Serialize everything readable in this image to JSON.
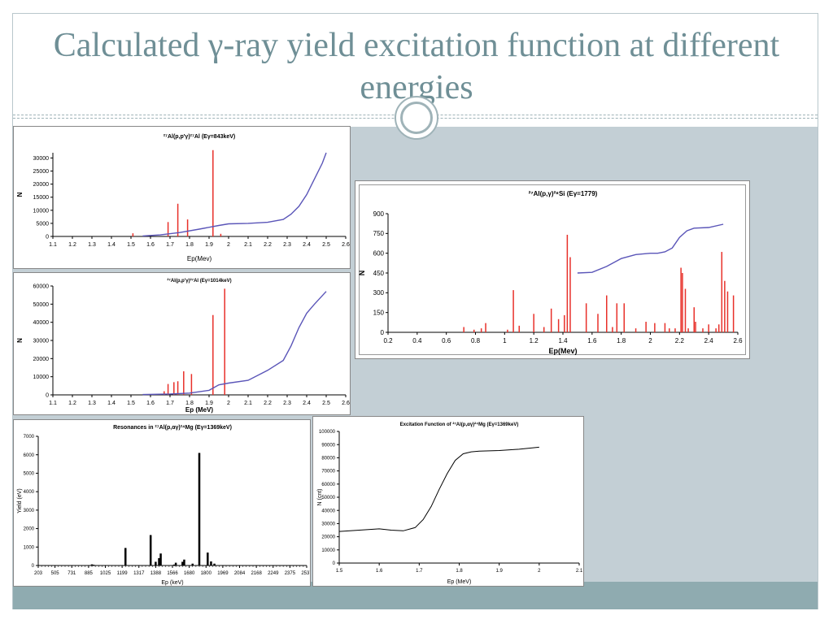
{
  "slide": {
    "title": "Calculated γ-ray yield excitation function at different energies",
    "colors": {
      "title": "#6f8f96",
      "panel_bg": "#c3cfd5",
      "band": "#8fabb0",
      "red": "#e8302a",
      "blue": "#5a55b8",
      "black": "#000000"
    }
  },
  "chart_data": [
    {
      "id": "c1",
      "type": "bar+line",
      "title": "²⁷Al(p,p'γ)²⁷Al (Eγ=843keV)",
      "xlabel": "Ep(Mev)",
      "ylabel": "N",
      "xlim": [
        1.1,
        2.6
      ],
      "ylim": [
        0,
        32000
      ],
      "xticks": [
        "1.1",
        "1.2",
        "1.3",
        "1.4",
        "1.5",
        "1.6",
        "1.7",
        "1.8",
        "1.9",
        "2",
        "2.1",
        "2.2",
        "2.3",
        "2.4",
        "2.5",
        "2.6"
      ],
      "yticks": [
        "0",
        "5000",
        "10000",
        "15000",
        "20000",
        "25000",
        "30000"
      ],
      "xtick_values": [
        1.1,
        1.2,
        1.3,
        1.4,
        1.5,
        1.6,
        1.7,
        1.8,
        1.9,
        2.0,
        2.1,
        2.2,
        2.3,
        2.4,
        2.5,
        2.6
      ],
      "ytick_values": [
        0,
        5000,
        10000,
        15000,
        20000,
        25000,
        30000
      ],
      "bars": {
        "x": [
          1.51,
          1.69,
          1.74,
          1.79,
          1.92,
          1.96
        ],
        "y": [
          1200,
          5500,
          12500,
          6500,
          33000,
          1000
        ]
      },
      "line": {
        "x": [
          1.56,
          1.65,
          1.75,
          1.85,
          1.95,
          2.0,
          2.1,
          2.2,
          2.28,
          2.32,
          2.36,
          2.4,
          2.44,
          2.48,
          2.5
        ],
        "y": [
          200,
          600,
          1500,
          2800,
          4200,
          4800,
          5000,
          5400,
          6500,
          8500,
          11500,
          16000,
          22000,
          28000,
          32000
        ]
      }
    },
    {
      "id": "c2",
      "type": "bar+line",
      "title": "²⁷Al(p,p'γ)²⁷Al (Eγ=1014keV)",
      "xlabel": "Ep (MeV)",
      "ylabel": "N",
      "xlim": [
        1.1,
        2.6
      ],
      "ylim": [
        0,
        60000
      ],
      "xticks": [
        "1.1",
        "1.2",
        "1.3",
        "1.4",
        "1.5",
        "1.6",
        "1.7",
        "1.8",
        "1.9",
        "2",
        "2.1",
        "2.2",
        "2.3",
        "2.4",
        "2.5",
        "2.6"
      ],
      "yticks": [
        "0",
        "10000",
        "20000",
        "30000",
        "40000",
        "50000",
        "60000"
      ],
      "xtick_values": [
        1.1,
        1.2,
        1.3,
        1.4,
        1.5,
        1.6,
        1.7,
        1.8,
        1.9,
        2.0,
        2.1,
        2.2,
        2.3,
        2.4,
        2.5,
        2.6
      ],
      "ytick_values": [
        0,
        10000,
        20000,
        30000,
        40000,
        50000,
        60000
      ],
      "bars": {
        "x": [
          1.67,
          1.69,
          1.72,
          1.74,
          1.77,
          1.81,
          1.92,
          1.98
        ],
        "y": [
          2000,
          6000,
          7000,
          7500,
          13000,
          11500,
          44000,
          58500
        ]
      },
      "line": {
        "x": [
          1.56,
          1.7,
          1.8,
          1.9,
          1.95,
          2.0,
          2.1,
          2.2,
          2.28,
          2.32,
          2.36,
          2.4,
          2.44,
          2.5
        ],
        "y": [
          200,
          500,
          1000,
          2500,
          5500,
          6500,
          8000,
          13500,
          19000,
          27000,
          37000,
          45000,
          50000,
          57000
        ]
      }
    },
    {
      "id": "c3",
      "type": "bar+line",
      "title": "²⁷Al(p,γ)²⁸Si (Eγ=1779)",
      "xlabel": "Ep(Mev)",
      "ylabel": "N",
      "xlim": [
        0.2,
        2.6
      ],
      "ylim": [
        0,
        900
      ],
      "xticks": [
        "0.2",
        "0.4",
        "0.6",
        "0.8",
        "1",
        "1.2",
        "1.4",
        "1.6",
        "1.8",
        "2",
        "2.2",
        "2.4",
        "2.6"
      ],
      "yticks": [
        "0",
        "150",
        "300",
        "450",
        "600",
        "750",
        "900"
      ],
      "xtick_values": [
        0.2,
        0.4,
        0.6,
        0.8,
        1.0,
        1.2,
        1.4,
        1.6,
        1.8,
        2.0,
        2.2,
        2.4,
        2.6
      ],
      "ytick_values": [
        0,
        150,
        300,
        450,
        600,
        750,
        900
      ],
      "bars": {
        "x": [
          0.72,
          0.79,
          0.84,
          0.87,
          1.02,
          1.06,
          1.1,
          1.2,
          1.27,
          1.32,
          1.37,
          1.41,
          1.43,
          1.45,
          1.56,
          1.64,
          1.7,
          1.74,
          1.77,
          1.82,
          1.9,
          1.97,
          2.03,
          2.1,
          2.13,
          2.17,
          2.21,
          2.22,
          2.24,
          2.26,
          2.3,
          2.31,
          2.36,
          2.4,
          2.45,
          2.47,
          2.49,
          2.51,
          2.53,
          2.57
        ],
        "y": [
          40,
          20,
          30,
          70,
          20,
          320,
          50,
          140,
          40,
          180,
          100,
          130,
          740,
          570,
          220,
          140,
          280,
          40,
          220,
          220,
          30,
          80,
          70,
          70,
          30,
          30,
          490,
          450,
          330,
          30,
          190,
          80,
          30,
          60,
          30,
          60,
          610,
          390,
          310,
          280
        ]
      },
      "line": {
        "x": [
          1.5,
          1.6,
          1.7,
          1.8,
          1.9,
          2.0,
          2.05,
          2.1,
          2.15,
          2.2,
          2.25,
          2.3,
          2.4,
          2.5
        ],
        "y": [
          450,
          455,
          500,
          560,
          590,
          600,
          600,
          610,
          640,
          720,
          770,
          790,
          795,
          820
        ]
      }
    },
    {
      "id": "c4",
      "type": "bar",
      "title": "Resonances in ²⁷Al(p,αγ)²⁴Mg (Eγ=1369keV)",
      "xlabel": "Ep (keV)",
      "ylabel": "Yield (eV)",
      "xlim": [
        203,
        2580
      ],
      "ylim": [
        0,
        7000
      ],
      "xticks": [
        "203",
        "505",
        "731",
        "885",
        "1025",
        "1199",
        "1317",
        "1388",
        "1566",
        "1680",
        "1800",
        "1969",
        "2084",
        "2168",
        "2249",
        "2375",
        "2537"
      ],
      "xtick_pos": [
        0,
        1,
        2,
        3,
        4,
        5,
        6,
        7,
        8,
        9,
        10,
        11,
        12,
        13,
        14,
        15,
        16
      ],
      "yticks": [
        "0",
        "1000",
        "2000",
        "3000",
        "4000",
        "5000",
        "6000",
        "7000"
      ],
      "ytick_values": [
        0,
        1000,
        2000,
        3000,
        4000,
        5000,
        6000,
        7000
      ],
      "bars": {
        "pos": [
          3.2,
          3.3,
          5.2,
          6.7,
          7.0,
          7.2,
          7.3,
          8.1,
          8.2,
          8.6,
          8.7,
          9.2,
          9.6,
          10.1,
          10.3,
          10.5
        ],
        "y": [
          60,
          40,
          950,
          1650,
          200,
          400,
          650,
          50,
          150,
          200,
          320,
          100,
          6100,
          700,
          220,
          100
        ]
      }
    },
    {
      "id": "c5",
      "type": "line",
      "title": "Excitation Function of ²⁷Al(p,αγ)²⁴Mg (Eγ=1369keV)",
      "xlabel": "Ep (MeV)",
      "ylabel": "N (cnt)",
      "xlim": [
        1.5,
        2.1
      ],
      "ylim": [
        0,
        100000
      ],
      "xticks": [
        "1.5",
        "1.6",
        "1.7",
        "1.8",
        "1.9",
        "2",
        "2.1"
      ],
      "xtick_values": [
        1.5,
        1.6,
        1.7,
        1.8,
        1.9,
        2.0,
        2.1
      ],
      "yticks": [
        "0",
        "10000",
        "20000",
        "30000",
        "40000",
        "50000",
        "60000",
        "70000",
        "80000",
        "90000",
        "100000"
      ],
      "ytick_values": [
        0,
        10000,
        20000,
        30000,
        40000,
        50000,
        60000,
        70000,
        80000,
        90000,
        100000
      ],
      "line": {
        "x": [
          1.5,
          1.55,
          1.6,
          1.63,
          1.66,
          1.69,
          1.71,
          1.73,
          1.75,
          1.77,
          1.79,
          1.81,
          1.83,
          1.85,
          1.9,
          1.95,
          2.0
        ],
        "y": [
          24000,
          25000,
          26000,
          25000,
          24500,
          27000,
          33000,
          43000,
          56000,
          68000,
          78000,
          83000,
          84500,
          85000,
          85500,
          86500,
          88000
        ]
      }
    }
  ]
}
